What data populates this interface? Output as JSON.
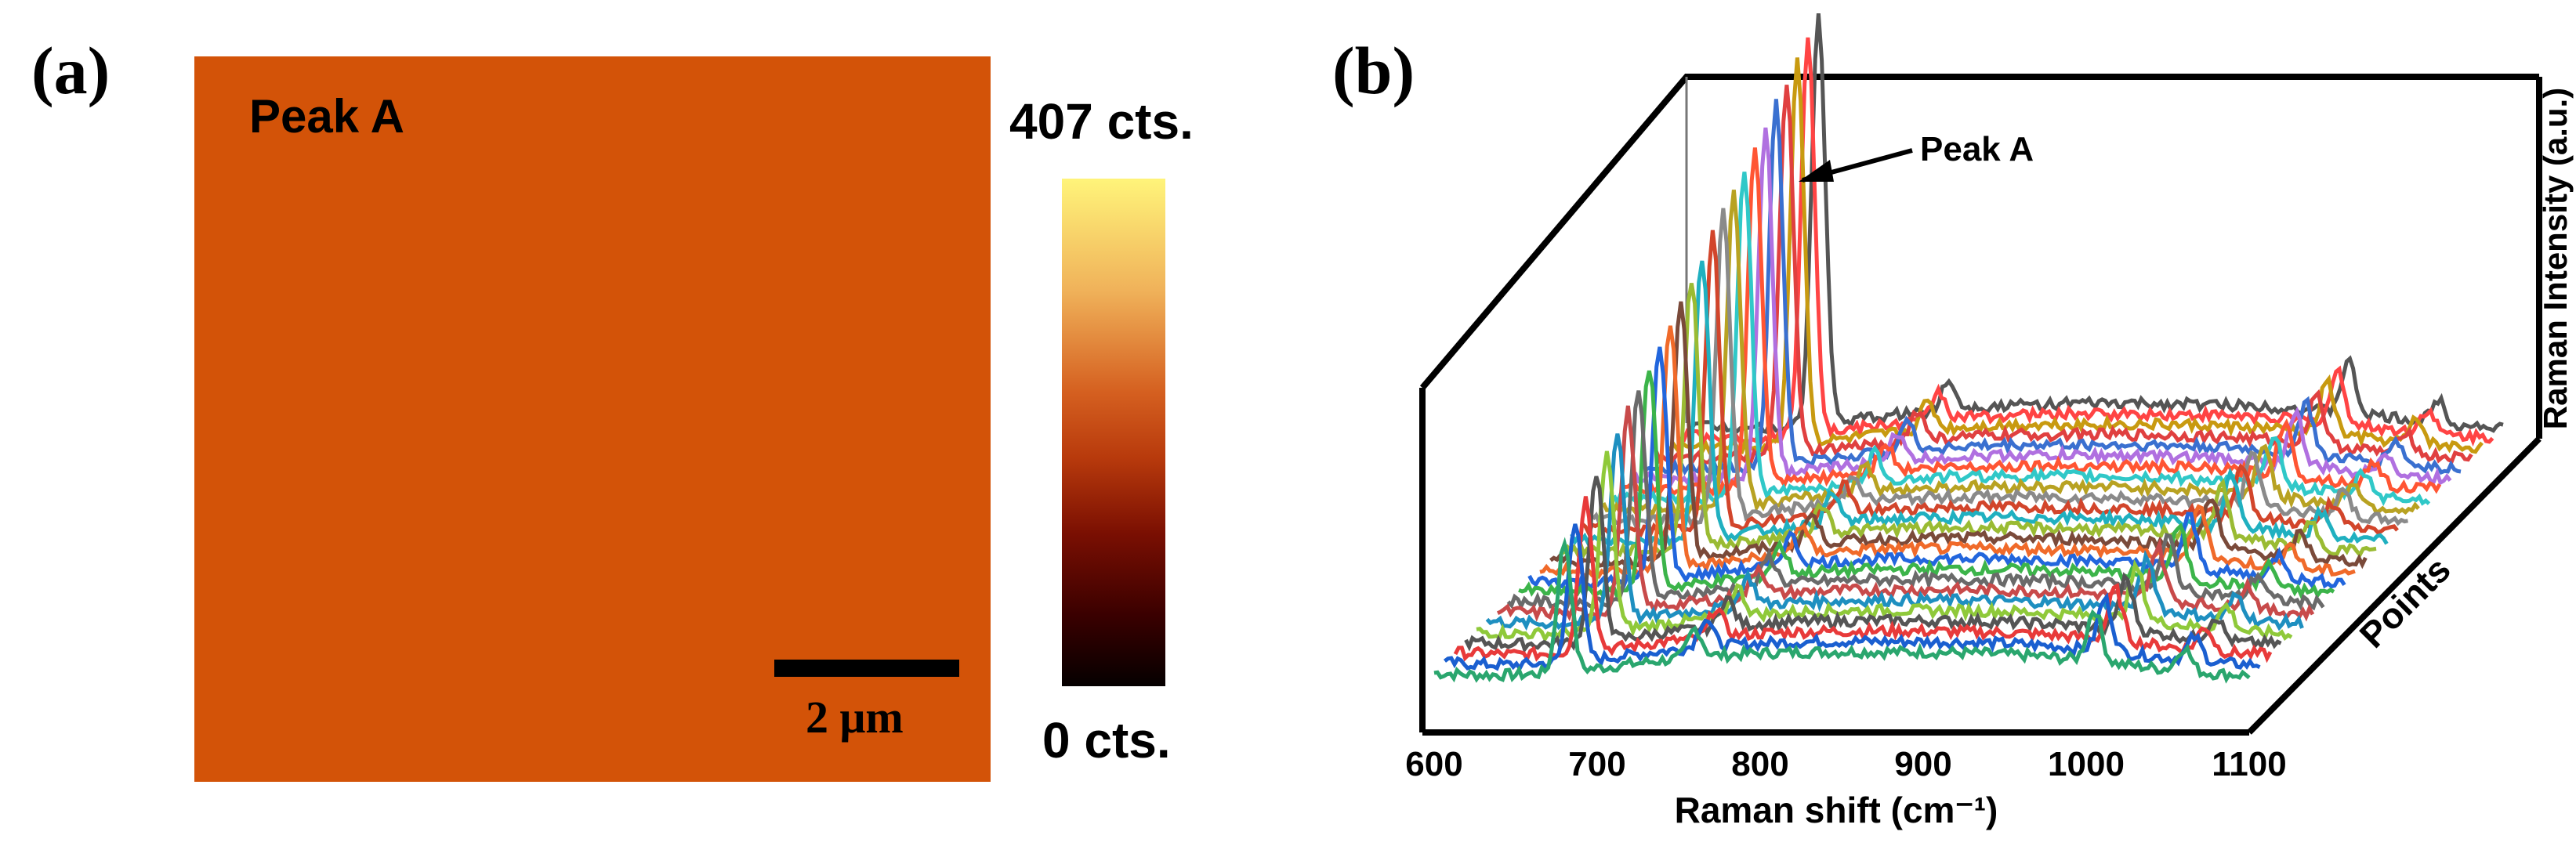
{
  "panel_a": {
    "label": "(a)",
    "map_title": "Peak A",
    "scale_bar": "2 μm",
    "colorbar_max": "407 cts.",
    "colorbar_min": "0 cts.",
    "map_color": "#d35308"
  },
  "panel_b": {
    "label": "(b)"
  },
  "chart_data": {
    "type": "line",
    "title": "",
    "xlabel": "Raman shift (cm⁻¹)",
    "ylabel": "Raman Intensity (a.u.)",
    "zlabel": "Points",
    "xticks": [
      "600",
      "700",
      "800",
      "900",
      "1000",
      "1100"
    ],
    "xlim": [
      600,
      1100
    ],
    "annotation": {
      "text": "Peak A",
      "x": 820
    },
    "series_count": 25,
    "series_colors": [
      "#2aa66e",
      "#1a5fd0",
      "#e83a3a",
      "#555555",
      "#8fc93a",
      "#1e8fc0",
      "#c84a4a",
      "#6a6a6a",
      "#3cb44a",
      "#2266dd",
      "#f06a2a",
      "#7a4a3a",
      "#9abb33",
      "#20b0c0",
      "#d2452b",
      "#8a8a8a",
      "#b8a222",
      "#30c8c8",
      "#ff5533",
      "#b070e0",
      "#3a70d0",
      "#e04040",
      "#c89a10",
      "#ff4444",
      "#555555"
    ],
    "peaks": [
      {
        "position": 680,
        "height": 0.55
      },
      {
        "position": 760,
        "height": 0.12
      },
      {
        "position": 1005,
        "height": 0.22
      },
      {
        "position": 1060,
        "height": 0.1
      }
    ]
  }
}
